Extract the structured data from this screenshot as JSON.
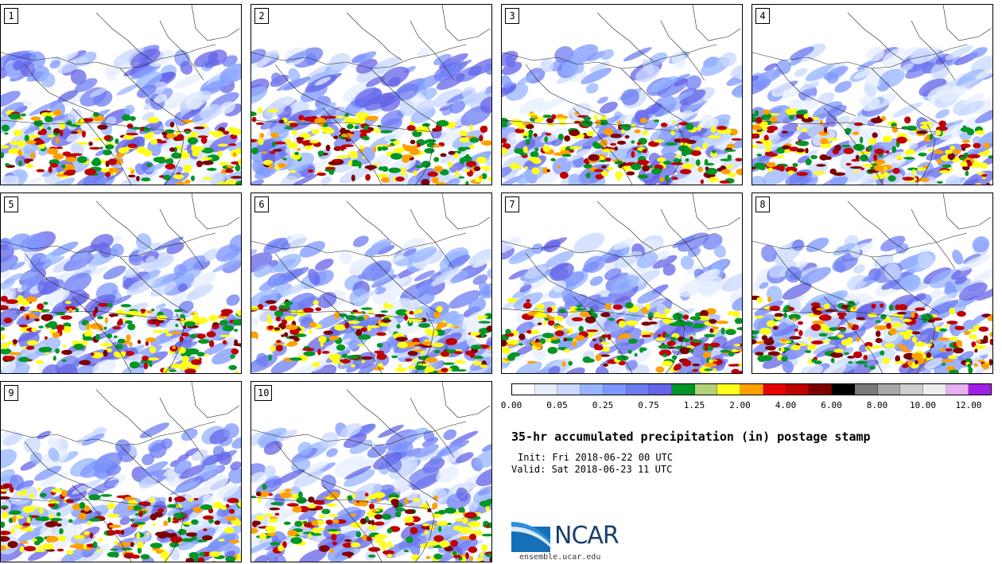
{
  "title": "35-hr accumulated precipitation (in) postage stamp",
  "init": "Init: Fri 2018-06-22 00 UTC",
  "valid": "Valid: Sat 2018-06-23 11 UTC",
  "panels": [
    "1",
    "2",
    "3",
    "4",
    "5",
    "6",
    "7",
    "8",
    "9",
    "10"
  ],
  "colorbar": {
    "colors": [
      "#ffffff",
      "#e6eeff",
      "#c9d8ff",
      "#96b4ff",
      "#7d97ff",
      "#6e7cf2",
      "#6464e8",
      "#009626",
      "#b2d27a",
      "#ffff19",
      "#ffa000",
      "#e60000",
      "#bf0000",
      "#7d0000",
      "#000000",
      "#7a7a7a",
      "#a8a8a8",
      "#cfcfcf",
      "#eeeeee",
      "#e6b0f2",
      "#a01ee6"
    ],
    "ticks": [
      "0.00",
      "0.05",
      "0.25",
      "0.75",
      "1.25",
      "2.00",
      "4.00",
      "6.00",
      "8.00",
      "10.00",
      "12.00"
    ]
  },
  "logo": {
    "text": "NCAR",
    "url": "ensemble.ucar.edu"
  }
}
